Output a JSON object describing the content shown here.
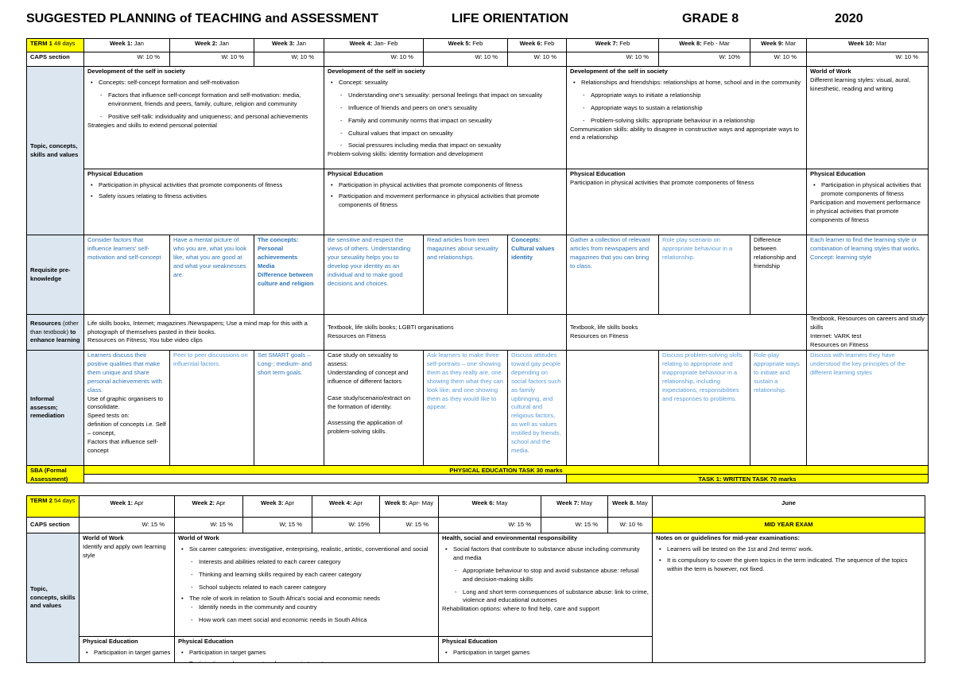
{
  "header": {
    "title": "SUGGESTED PLANNING of TEACHING and ASSESSMENT",
    "subject": "LIFE ORIENTATION",
    "grade": "GRADE 8",
    "year": "2020"
  },
  "term1": {
    "term": [
      "TERM 1",
      "48 days"
    ],
    "weeks": [
      {
        "label": "Week 1:",
        "month": "Jan"
      },
      {
        "label": "Week 2:",
        "month": "Jan"
      },
      {
        "label": "Week 3:",
        "month": "Jan"
      },
      {
        "label": "Week 4:",
        "month": "Jan- Feb"
      },
      {
        "label": "Week 5:",
        "month": "Feb"
      },
      {
        "label": "Week 6:",
        "month": "Feb"
      },
      {
        "label": "Week 7:",
        "month": "Feb"
      },
      {
        "label": "Week 8:",
        "month": "Feb - Mar"
      },
      {
        "label": "Week 9:",
        "month": "Mar"
      },
      {
        "label": "Week 10:",
        "month": "Mar"
      }
    ],
    "caps_label": "CAPS section",
    "caps": [
      "W: 10 %",
      "W: 10 %",
      "W; 10 %",
      "W: 10 %",
      "W: 10 %",
      "W: 10 %",
      "W: 10 %",
      "W: 10%",
      "W: 10 %",
      "W: 10 %"
    ],
    "row_labels": {
      "topics": [
        {
          "b": "Topic, concepts, skills and values"
        }
      ],
      "requisite": [
        {
          "b": "Requisite pre-knowledge"
        }
      ],
      "resources": [
        {
          "b": "Resources"
        },
        " (other than textbook) ",
        {
          "b": "to enhance learning"
        }
      ],
      "informal": [
        {
          "b": "Informal assessm; remediation"
        }
      ],
      "sba": [
        {
          "b": "SBA (Formal Assessment)"
        }
      ]
    },
    "topics": [
      [
        {
          "b": "Development of the self in society"
        },
        {
          "bullet": "Concepts: self-concept formation and self-motivation"
        },
        {
          "dash": "Factors that influence self-concept formation and self-motivation: media, environment, friends and peers, family, culture, religion and community"
        },
        {
          "dash": "Positive self-talk: individuality and uniqueness; and personal achievements"
        },
        "Strategies and skills to extend personal potential"
      ],
      [
        {
          "b": "Development of the self in society"
        },
        {
          "bullet": "Concept: sexuality"
        },
        {
          "dash": "Understanding one's sexuality: personal feelings that impact on sexuality"
        },
        {
          "dash": "Influence of friends and peers on one's sexuality"
        },
        {
          "dash": "Family and community norms that impact on sexuality"
        },
        {
          "dash": "Cultural values that impact on sexuality"
        },
        {
          "dash": "Social pressures including media that impact on sexuality"
        },
        "Problem-solving skills: identity formation and development"
      ],
      [
        {
          "b": "Development of the self in society"
        },
        {
          "bullet": "Relationships and friendships: relationships at home, school and in the community"
        },
        {
          "dash": "Appropriate ways to initiate a relationship"
        },
        {
          "dash": "Appropriate ways to sustain a relationship"
        },
        {
          "dash": "Problem-solving skills: appropriate behaviour in a relationship"
        },
        "Communication skills: ability to disagree in constructive ways and appropriate ways to end a relationship"
      ],
      [
        {
          "b": "World of Work"
        },
        "Different learning styles: visual, aural, kinesthetic, reading and writing"
      ]
    ],
    "pe": [
      [
        {
          "b": "Physical Education"
        },
        {
          "bullet": "Participation in physical activities that promote components of fitness"
        },
        {
          "bullet": "Safety issues relating to fitness activities"
        }
      ],
      [
        {
          "b": "Physical Education"
        },
        {
          "bullet": "Participation in physical activities that promote components of fitness"
        },
        {
          "bullet": "Participation and movement performance in physical activities that promote components of fitness"
        }
      ],
      [
        {
          "b": "Physical Education"
        },
        "Participation in physical activities that promote components of fitness"
      ],
      [
        {
          "b": "Physical Education"
        },
        {
          "bullet": "Participation in physical activities that promote components of fitness"
        },
        "Participation and movement performance in physical activities that promote components of fitness"
      ]
    ],
    "requisite": [
      [
        {
          "blue": "Consider factors that influence learners' self-motivation and self-concept"
        }
      ],
      [
        {
          "blue": "Have a mental picture of who you are, what you look like, what you are good at and what your weaknesses are."
        }
      ],
      [
        {
          "bblue": "The concepts:"
        },
        {
          "bblue": "Personal achievements"
        },
        {
          "bblue": "Media"
        },
        {
          "bblue": "Difference between culture and religion"
        }
      ],
      [
        {
          "blue": "Be sensitive and respect the views of others. Understanding your sexuality helps you to develop your identity as an individual and to make good decisions and choices."
        }
      ],
      [
        {
          "blue": "Read articles from teen magazines about sexuality and relationships."
        }
      ],
      [
        {
          "bblue": "Concepts:"
        },
        {
          "bblue": "Cultural values identity"
        }
      ],
      [
        {
          "blue": "Gather a collection of relevant articles from newspapers and magazines that you can bring to class."
        }
      ],
      [
        {
          "lblue": "Role play scenario on appropriate behaviour in a relationship."
        }
      ],
      [
        "Difference between relationship and friendship"
      ],
      [
        {
          "blue": "Each learner to find the learning style or combination of learning styles that works."
        },
        {
          "blue": "Concept: learning style"
        }
      ]
    ],
    "resources": [
      [
        "Life skills books, Internet; magazines /Newspapers; Use a mind map for this with a photograph of themselves pasted in their books.",
        "Resources on Fitness; You tube video clips"
      ],
      [
        "Textbook, life skills books; LGBTI organisations",
        "Resources on Fitness"
      ],
      [
        "Textbook, life skills books",
        "Resources on Fitness"
      ],
      [
        "Textbook, Resources on careers and study skills",
        "Internet: VARK test",
        "Resources on Fitness"
      ]
    ],
    "informal": [
      [
        {
          "blue": "Learners discuss their positive qualities that make them unique and share personal achievements with class."
        },
        "Use of graphic organisers to consolidate.",
        "Speed tests on:",
        "definition of concepts i.e. Self – concept,",
        "Factors that influence self-concept"
      ],
      [
        {
          "lblue": "Peer to peer discussions on influential factors."
        }
      ],
      [
        {
          "blue": "Set SMART goals – Long-; medium- and short term goals."
        }
      ],
      [
        "Case study on sexuality to assess:",
        "Understanding of concept and influence of different factors",
        {
          "gap": "Case study/scenario/extract on the formation of identity."
        },
        {
          "gap": "Assessing the application of problem-solving skills."
        }
      ],
      [
        {
          "lblue": "Ask learners to make three self-portraits – one showing them as they really are, one showing them what they can look like; and one showing them as they would like to appear."
        }
      ],
      [
        {
          "lblue": "Discuss attitudes toward gay people depending on social factors such as family upbringing, and cultural and religious factors, as well as values instilled by friends, school and the media."
        }
      ],
      [
        {
          "lblue": "Discuss problem-solving skills relating to appropriate and inappropriate behaviour in a relationship, including expectations, responsibilities and responses to problems."
        }
      ],
      [
        {
          "lblue": "Role-play appropriate ways to initiate and sustain a relationship."
        }
      ],
      [
        {
          "lblue": "Discuss with learners they have understood the key principles of the different learning styles"
        }
      ]
    ],
    "sba": [
      "PHYSICAL EDUCATION TASK   30 marks",
      "TASK 1: WRITTEN TASK    70 marks"
    ]
  },
  "term2": {
    "term": [
      "TERM 2",
      "54 days"
    ],
    "weeks": [
      {
        "label": "Week 1:",
        "month": "Apr"
      },
      {
        "label": "Week 2:",
        "month": "Apr"
      },
      {
        "label": "Week 3:",
        "month": "Apr"
      },
      {
        "label": "Week 4:",
        "month": "Apr"
      },
      {
        "label": "Week 5:",
        "month": "Apr- May"
      },
      {
        "label": "Week 6:",
        "month": "May"
      },
      {
        "label": "Week 7:",
        "month": "May"
      },
      {
        "label": "Week 8.",
        "month": "May"
      },
      {
        "label": "June"
      }
    ],
    "caps_label": "CAPS section",
    "caps": [
      "W: 15 %",
      "W: 15 %",
      "W; 15 %",
      "W: 15%",
      "W: 15 %",
      "W: 15 %",
      "W: 15 %",
      "W: 10 %",
      "MID YEAR EXAM"
    ],
    "row_labels": {
      "topics": [
        {
          "b": "Topic, concepts, skills and values"
        }
      ]
    },
    "topics": [
      [
        {
          "b": "World of Work"
        },
        "Identify and apply own learning style"
      ],
      [
        {
          "b": "World of Work"
        },
        {
          "bullet": "Six career categories: investigative, enterprising, realistic, artistic, conventional and social"
        },
        {
          "dash": "Interests and abilities related to each career category"
        },
        {
          "dash": "Thinking and learning skills required by each career category"
        },
        {
          "dash": "School subjects related to each career category"
        },
        {
          "bullet": "The role of work in relation to South Africa's social and economic needs"
        },
        {
          "dash2": "Identify needs in the community and country"
        },
        {
          "dash": "How work can meet social and economic needs in South Africa"
        }
      ],
      [
        {
          "b": "Health, social and environmental responsibility"
        },
        {
          "bullet": "Social factors that contribute to substance abuse including community and media"
        },
        {
          "dash": "Appropriate behaviour to stop and avoid substance abuse: refusal and decision-making skills"
        },
        {
          "dash": "Long and short term consequences of substance abuse: link to crime, violence and educational outcomes"
        },
        "Rehabilitation options: where to find help, care and support"
      ],
      [
        {
          "b": "Notes on or guidelines for mid-year examinations:"
        },
        {
          "bullet": "Learners will be tested on the 1st and 2nd terms' work."
        },
        {
          "bullet": "It is compulsory to cover the given topics in the term indicated. The sequence of the topics within the term is however, not fixed."
        }
      ]
    ],
    "pe": [
      [
        {
          "b": "Physical Education"
        },
        {
          "bullet": "Participation in target games"
        }
      ],
      [
        {
          "b": "Physical Education"
        },
        {
          "bullet": "Participation in target games"
        },
        {
          "bullet": "Participation and movement performance in target games"
        }
      ],
      [
        {
          "b": "Physical Education"
        },
        {
          "bullet": "Participation in target games"
        }
      ]
    ]
  }
}
